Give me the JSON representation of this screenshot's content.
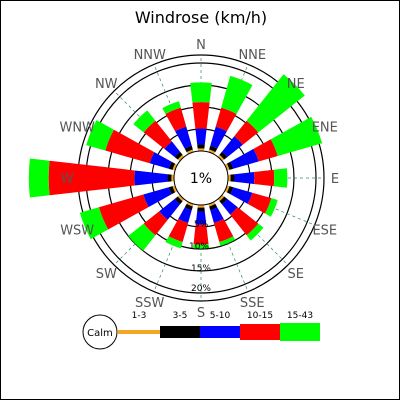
{
  "chart_data": {
    "type": "windrose",
    "title": "Windrose (km/h)",
    "calm_label": "1%",
    "directions": [
      "N",
      "NNE",
      "NE",
      "ENE",
      "E",
      "ESE",
      "SE",
      "SSE",
      "S",
      "SSW",
      "SW",
      "WSW",
      "W",
      "WNW",
      "NW",
      "NNW"
    ],
    "rings": [
      "5%",
      "10%",
      "15%",
      "20%"
    ],
    "legend_title": "Calm",
    "speed_bins": [
      {
        "label": "1-3",
        "color": "#f5a623"
      },
      {
        "label": "3-5",
        "color": "#000000"
      },
      {
        "label": "5-10",
        "color": "#0000ff"
      },
      {
        "label": "10-15",
        "color": "#ff0000"
      },
      {
        "label": "15-43",
        "color": "#00ff00"
      }
    ],
    "series_by_direction": [
      {
        "dir": "N",
        "values": [
          0.2,
          0.3,
          1.2,
          2.0,
          1.5
        ]
      },
      {
        "dir": "NNE",
        "values": [
          0.2,
          0.3,
          1.5,
          1.5,
          2.5
        ]
      },
      {
        "dir": "NE",
        "values": [
          0.2,
          0.3,
          1.5,
          1.5,
          4.5
        ]
      },
      {
        "dir": "ENE",
        "values": [
          0.2,
          0.3,
          2.0,
          1.5,
          3.5
        ]
      },
      {
        "dir": "E",
        "values": [
          0.2,
          0.3,
          1.5,
          1.5,
          1.0
        ]
      },
      {
        "dir": "ESE",
        "values": [
          0.2,
          0.3,
          1.5,
          1.5,
          0.5
        ]
      },
      {
        "dir": "SE",
        "values": [
          0.2,
          0.3,
          1.0,
          2.0,
          0.5
        ]
      },
      {
        "dir": "SSE",
        "values": [
          0.2,
          0.3,
          1.0,
          1.5,
          0.3
        ]
      },
      {
        "dir": "S",
        "values": [
          0.2,
          0.3,
          1.0,
          1.5,
          0.3
        ]
      },
      {
        "dir": "SSW",
        "values": [
          0.2,
          0.3,
          1.0,
          1.5,
          0.5
        ]
      },
      {
        "dir": "SW",
        "values": [
          0.2,
          0.3,
          1.5,
          1.5,
          1.5
        ]
      },
      {
        "dir": "WSW",
        "values": [
          0.2,
          0.3,
          2.0,
          3.5,
          1.5
        ]
      },
      {
        "dir": "W",
        "values": [
          0.2,
          0.3,
          2.5,
          6.5,
          1.5
        ]
      },
      {
        "dir": "WNW",
        "values": [
          0.2,
          0.3,
          1.5,
          3.5,
          1.5
        ]
      },
      {
        "dir": "NW",
        "values": [
          0.2,
          0.3,
          1.0,
          2.0,
          1.0
        ]
      },
      {
        "dir": "NNW",
        "values": [
          0.2,
          0.3,
          1.5,
          1.5,
          0.5
        ]
      }
    ]
  }
}
